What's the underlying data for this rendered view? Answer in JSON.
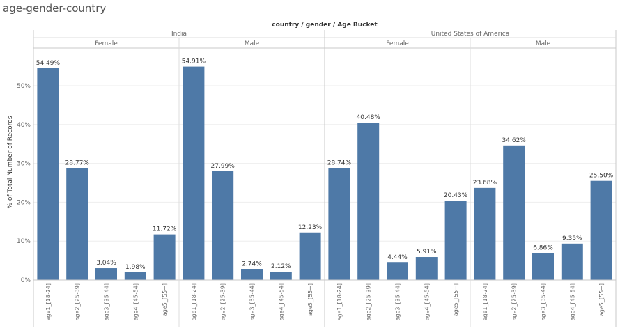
{
  "sheet": {
    "title": "age-gender-country"
  },
  "chart_data": {
    "type": "bar",
    "title": "country / gender / Age Bucket",
    "ylabel": "% of Total Number of Records",
    "xlabel": "",
    "ylim": [
      0,
      60
    ],
    "y_ticks": [
      0,
      10,
      20,
      30,
      40,
      50
    ],
    "y_tick_format": "{v}%",
    "grid": true,
    "bar_color": "#4e79a7",
    "categories": [
      "age1_[18-24]",
      "age2_[25-39]",
      "age3_[35-44]",
      "age4_[45-54]",
      "age5_[55+]"
    ],
    "groups": [
      {
        "country": "India",
        "genders": [
          {
            "name": "Female",
            "values": [
              54.49,
              28.77,
              3.04,
              1.98,
              11.72
            ],
            "labels": [
              "54.49%",
              "28.77%",
              "3.04%",
              "1.98%",
              "11.72%"
            ]
          },
          {
            "name": "Male",
            "values": [
              54.91,
              27.99,
              2.74,
              2.12,
              12.23
            ],
            "labels": [
              "54.91%",
              "27.99%",
              "2.74%",
              "2.12%",
              "12.23%"
            ]
          }
        ]
      },
      {
        "country": "United States of America",
        "genders": [
          {
            "name": "Female",
            "values": [
              28.74,
              40.48,
              4.44,
              5.91,
              20.43
            ],
            "labels": [
              "28.74%",
              "40.48%",
              "4.44%",
              "5.91%",
              "20.43%"
            ]
          },
          {
            "name": "Male",
            "values": [
              23.68,
              34.62,
              6.86,
              9.35,
              25.5
            ],
            "labels": [
              "23.68%",
              "34.62%",
              "6.86%",
              "9.35%",
              "25.50%"
            ]
          }
        ]
      }
    ]
  }
}
